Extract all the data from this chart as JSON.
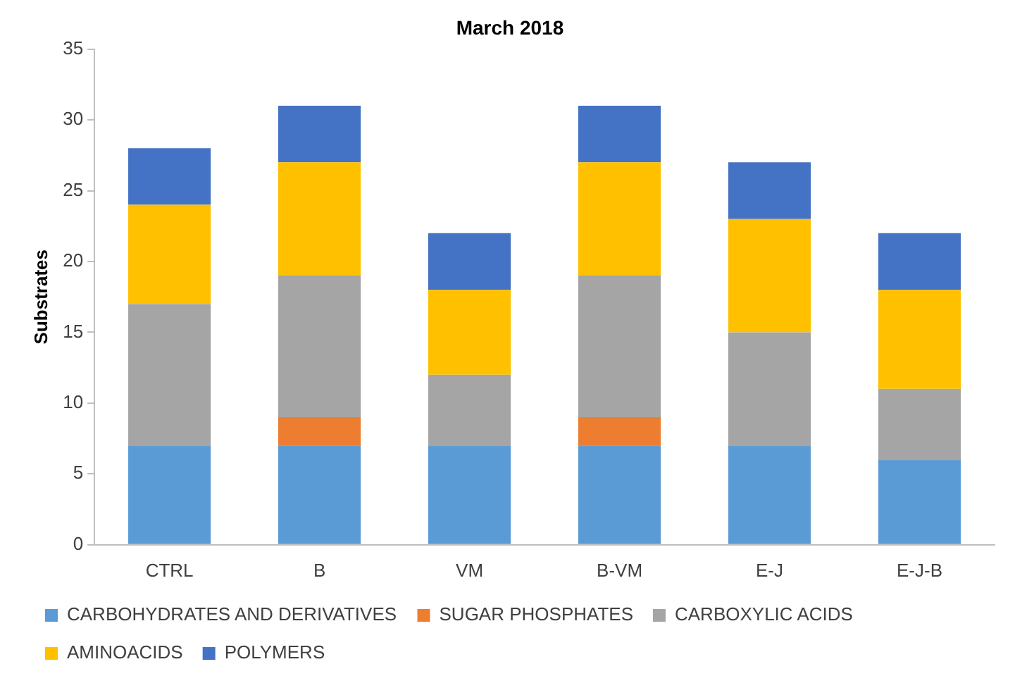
{
  "chart_data": {
    "type": "bar",
    "title": "March 2018",
    "ylabel": "Substrates",
    "categories": [
      "CTRL",
      "B",
      "VM",
      "B-VM",
      "E-J",
      "E-J-B"
    ],
    "stacked": true,
    "series": [
      {
        "name": "CARBOHYDRATES AND DERIVATIVES",
        "color": "#5b9bd5",
        "values": [
          7,
          7,
          7,
          7,
          7,
          6
        ]
      },
      {
        "name": "SUGAR PHOSPHATES",
        "color": "#ed7d31",
        "values": [
          0,
          2,
          0,
          2,
          0,
          0
        ]
      },
      {
        "name": "CARBOXYLIC ACIDS",
        "color": "#a5a5a5",
        "values": [
          10,
          10,
          5,
          10,
          8,
          5
        ]
      },
      {
        "name": "AMINOACIDS",
        "color": "#ffc000",
        "values": [
          7,
          8,
          6,
          8,
          8,
          7
        ]
      },
      {
        "name": "POLYMERS",
        "color": "#4472c4",
        "values": [
          4,
          4,
          4,
          4,
          4,
          4
        ]
      }
    ],
    "ylim": [
      0,
      35
    ],
    "yticks": [
      0,
      5,
      10,
      15,
      20,
      25,
      30,
      35
    ],
    "grid": false,
    "legend": "bottom"
  }
}
